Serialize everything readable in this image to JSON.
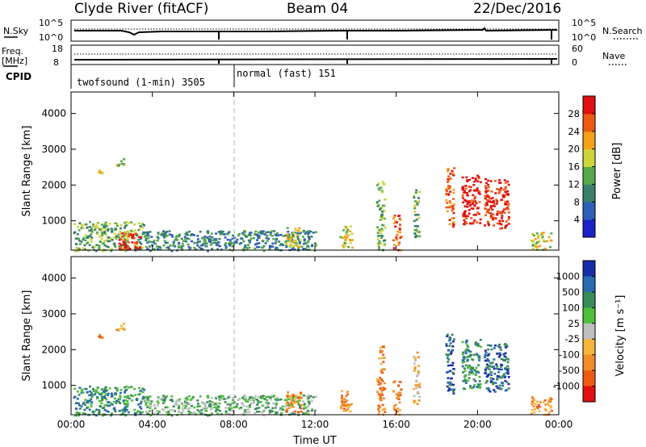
{
  "header": {
    "station": "Clyde River (fitACF)",
    "beam": "Beam 04",
    "date": "22/Dec/2016"
  },
  "noise_panel": {
    "left_label": "N.Sky",
    "left_ticks": [
      "10^5",
      "10^0"
    ],
    "right_ticks": [
      "10^5",
      "10^0"
    ],
    "right_label": "N.Search"
  },
  "freq_panel": {
    "left_label_1": "Freq.",
    "left_label_2": "[MHz]",
    "left_ticks": [
      "18",
      "8"
    ],
    "right_ticks": [
      "60",
      "0"
    ],
    "right_label": "Nave"
  },
  "cpid": {
    "label": "CPID",
    "segments": [
      {
        "text": "twofsound (1-min) 3505",
        "start_hour": 0
      },
      {
        "text": "normal (fast) 151",
        "start_hour": 7.5
      }
    ]
  },
  "chart_data": [
    {
      "type": "heatmap",
      "quantity": "Power",
      "ylabel": "Slant Range [km]",
      "xlabel": "Time UT",
      "ylim": [
        180,
        4600
      ],
      "xlim_hours": [
        0,
        24
      ],
      "x_ticks": [
        "00:00",
        "04:00",
        "08:00",
        "12:00",
        "16:00",
        "20:00",
        "00:00"
      ],
      "y_ticks": [
        1000,
        2000,
        3000,
        4000
      ],
      "colorbar": {
        "label": "Power [dB]",
        "ticks": [
          "4",
          "8",
          "12",
          "16",
          "20",
          "24",
          "28"
        ],
        "colors": [
          "#1a22c8",
          "#2e5fb8",
          "#3a7f6a",
          "#55a84a",
          "#cfd43a",
          "#f4a018",
          "#ee5a14",
          "#e01010"
        ]
      },
      "echo_patches": [
        {
          "t0": 0.1,
          "t1": 3.6,
          "r0": 180,
          "r1": 1000,
          "level": 3
        },
        {
          "t0": 1.3,
          "t1": 1.5,
          "r0": 2350,
          "r1": 2450,
          "level": 4
        },
        {
          "t0": 2.2,
          "t1": 2.6,
          "r0": 2550,
          "r1": 2750,
          "level": 4
        },
        {
          "t0": 2.3,
          "t1": 3.4,
          "r0": 200,
          "r1": 700,
          "level": 7
        },
        {
          "t0": 3.6,
          "t1": 12.0,
          "r0": 180,
          "r1": 750,
          "level": 2
        },
        {
          "t0": 10.5,
          "t1": 11.3,
          "r0": 250,
          "r1": 850,
          "level": 4
        },
        {
          "t0": 13.2,
          "t1": 13.8,
          "r0": 250,
          "r1": 900,
          "level": 4
        },
        {
          "t0": 15.0,
          "t1": 15.4,
          "r0": 200,
          "r1": 2200,
          "level": 3
        },
        {
          "t0": 15.8,
          "t1": 16.2,
          "r0": 200,
          "r1": 1200,
          "level": 6
        },
        {
          "t0": 16.8,
          "t1": 17.1,
          "r0": 500,
          "r1": 2000,
          "level": 3
        },
        {
          "t0": 18.4,
          "t1": 18.8,
          "r0": 800,
          "r1": 2500,
          "level": 6
        },
        {
          "t0": 19.2,
          "t1": 20.1,
          "r0": 900,
          "r1": 2300,
          "level": 7
        },
        {
          "t0": 20.3,
          "t1": 21.5,
          "r0": 800,
          "r1": 2200,
          "level": 7
        },
        {
          "t0": 22.6,
          "t1": 23.6,
          "r0": 200,
          "r1": 700,
          "level": 4
        }
      ]
    },
    {
      "type": "heatmap",
      "quantity": "Velocity",
      "ylabel": "Slant Range [km]",
      "xlabel": "Time UT",
      "ylim": [
        180,
        4600
      ],
      "xlim_hours": [
        0,
        24
      ],
      "x_ticks": [
        "00:00",
        "04:00",
        "08:00",
        "12:00",
        "16:00",
        "20:00",
        "00:00"
      ],
      "y_ticks": [
        1000,
        2000,
        3000,
        4000
      ],
      "colorbar": {
        "label": "Velocity [m s⁻¹]",
        "ticks": [
          "1000",
          "500",
          "100",
          "25",
          "-25",
          "-100",
          "-500",
          "-1000"
        ],
        "colors": [
          "#1a2ea8",
          "#2a6ab0",
          "#3a8a5a",
          "#4fbf3a",
          "#bfbfbf",
          "#f6b43a",
          "#f08c2a",
          "#ee5a14",
          "#e01010"
        ]
      },
      "echo_patches": [
        {
          "t0": 0.1,
          "t1": 3.6,
          "r0": 180,
          "r1": 1000,
          "level": 2
        },
        {
          "t0": 1.3,
          "t1": 1.5,
          "r0": 2350,
          "r1": 2450,
          "level": 6
        },
        {
          "t0": 2.2,
          "t1": 2.6,
          "r0": 2550,
          "r1": 2750,
          "level": 6
        },
        {
          "t0": 3.6,
          "t1": 12.0,
          "r0": 180,
          "r1": 750,
          "level": 3
        },
        {
          "t0": 10.5,
          "t1": 11.3,
          "r0": 250,
          "r1": 850,
          "level": 6
        },
        {
          "t0": 13.2,
          "t1": 13.8,
          "r0": 250,
          "r1": 900,
          "level": 6
        },
        {
          "t0": 15.0,
          "t1": 15.4,
          "r0": 200,
          "r1": 2200,
          "level": 6
        },
        {
          "t0": 15.8,
          "t1": 16.2,
          "r0": 200,
          "r1": 1200,
          "level": 6
        },
        {
          "t0": 16.8,
          "t1": 17.1,
          "r0": 500,
          "r1": 2000,
          "level": 5
        },
        {
          "t0": 18.4,
          "t1": 18.8,
          "r0": 800,
          "r1": 2500,
          "level": 1
        },
        {
          "t0": 19.2,
          "t1": 20.1,
          "r0": 900,
          "r1": 2300,
          "level": 2
        },
        {
          "t0": 20.3,
          "t1": 21.5,
          "r0": 800,
          "r1": 2200,
          "level": 1
        },
        {
          "t0": 22.6,
          "t1": 23.6,
          "r0": 200,
          "r1": 700,
          "level": 6
        }
      ]
    }
  ]
}
